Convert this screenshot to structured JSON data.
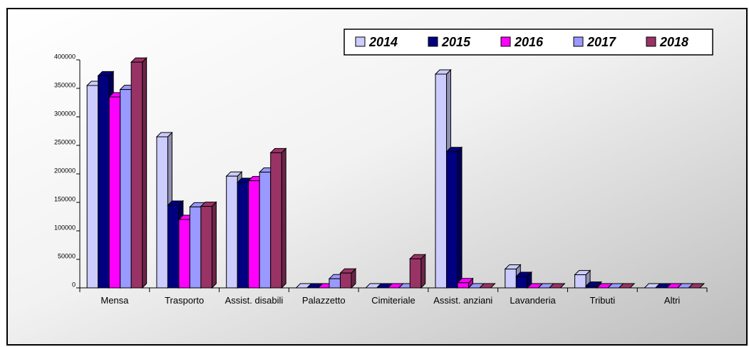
{
  "chart_data": {
    "type": "bar",
    "categories": [
      "Mensa",
      "Trasporto",
      "Assist. disabili",
      "Palazzetto",
      "Cimiteriale",
      "Assist. anziani",
      "Lavanderia",
      "Tributi",
      "Altri"
    ],
    "series": [
      {
        "name": "2014",
        "color": "#ccccff",
        "values": [
          355000,
          265000,
          196000,
          0,
          0,
          375000,
          33000,
          23000,
          0
        ]
      },
      {
        "name": "2015",
        "color": "#000080",
        "values": [
          372000,
          145000,
          185000,
          0,
          0,
          239000,
          20000,
          3000,
          0
        ]
      },
      {
        "name": "2016",
        "color": "#ff00ff",
        "values": [
          335000,
          120000,
          188000,
          0,
          0,
          9000,
          0,
          0,
          0
        ]
      },
      {
        "name": "2017",
        "color": "#9999ff",
        "values": [
          348000,
          142000,
          203000,
          16000,
          0,
          0,
          0,
          0,
          0
        ]
      },
      {
        "name": "2018",
        "color": "#993366",
        "values": [
          396000,
          143000,
          237000,
          26000,
          51000,
          0,
          0,
          0,
          0
        ]
      }
    ],
    "ylim": [
      0,
      400000
    ],
    "yticks": [
      0,
      50000,
      100000,
      150000,
      200000,
      250000,
      300000,
      350000,
      400000
    ],
    "legend": "top-right"
  }
}
